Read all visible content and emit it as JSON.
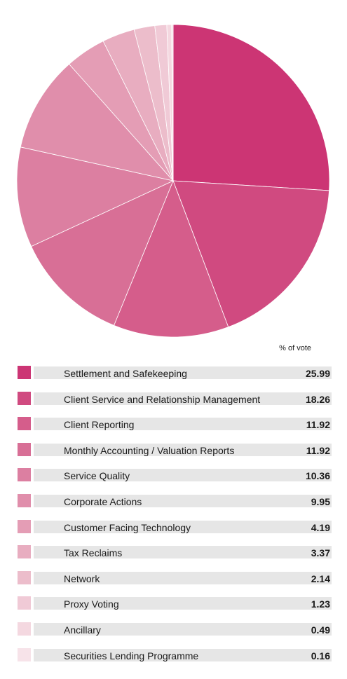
{
  "chart_data": {
    "type": "pie",
    "value_header": "% of vote",
    "slices": [
      {
        "label": "Settlement and Safekeeping",
        "value": "25.99",
        "color": "#cc3574"
      },
      {
        "label": "Client Service and Relationship Management",
        "value": "18.26",
        "color": "#d04a80"
      },
      {
        "label": "Client Reporting",
        "value": "11.92",
        "color": "#d55d8b"
      },
      {
        "label": "Monthly Accounting / Valuation Reports",
        "value": "11.92",
        "color": "#d86f96"
      },
      {
        "label": "Service Quality",
        "value": "10.36",
        "color": "#dc7fa1"
      },
      {
        "label": "Corporate Actions",
        "value": "9.95",
        "color": "#e08eab"
      },
      {
        "label": "Customer Facing Technology",
        "value": "4.19",
        "color": "#e49db5"
      },
      {
        "label": "Tax Reclaims",
        "value": "3.37",
        "color": "#e8adc0"
      },
      {
        "label": "Network",
        "value": "2.14",
        "color": "#ecbdcb"
      },
      {
        "label": "Proxy Voting",
        "value": "1.23",
        "color": "#f0cad6"
      },
      {
        "label": "Ancillary",
        "value": "0.49",
        "color": "#f4d8e0"
      },
      {
        "label": "Securities Lending Programme",
        "value": "0.16",
        "color": "#f7e3e9"
      }
    ]
  }
}
